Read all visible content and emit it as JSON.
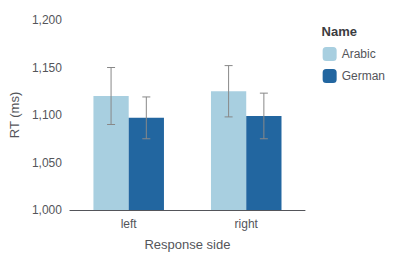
{
  "chart_data": {
    "type": "bar",
    "categories": [
      "left",
      "right"
    ],
    "series": [
      {
        "name": "Arabic",
        "color": "#a8cfe0",
        "values": [
          1120,
          1125
        ],
        "errors": [
          30,
          27
        ]
      },
      {
        "name": "German",
        "color": "#2266a0",
        "values": [
          1097,
          1099
        ],
        "errors": [
          22,
          24
        ]
      }
    ],
    "xlabel": "Response side",
    "ylabel": "RT (ms)",
    "legend_title": "Name",
    "ylim": [
      1000,
      1200
    ],
    "yticks": [
      1000,
      1050,
      1100,
      1150,
      1200
    ],
    "grid": false,
    "legend": "upper right"
  }
}
